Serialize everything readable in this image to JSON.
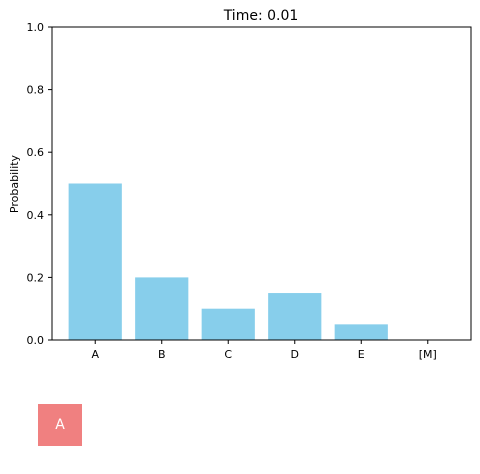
{
  "chart_data": {
    "type": "bar",
    "title": "Time: 0.01",
    "xlabel": "",
    "ylabel": "Probability",
    "categories": [
      "A",
      "B",
      "C",
      "D",
      "E",
      "[M]"
    ],
    "values": [
      0.5,
      0.2,
      0.1,
      0.15,
      0.05,
      0.0
    ],
    "ylim": [
      0,
      1.0
    ],
    "yticks": [
      "0.0",
      "0.2",
      "0.4",
      "0.6",
      "0.8",
      "1.0"
    ],
    "grid": false,
    "bar_color": "#87CEEB"
  },
  "token": {
    "label": "A",
    "color": "#F08080"
  }
}
